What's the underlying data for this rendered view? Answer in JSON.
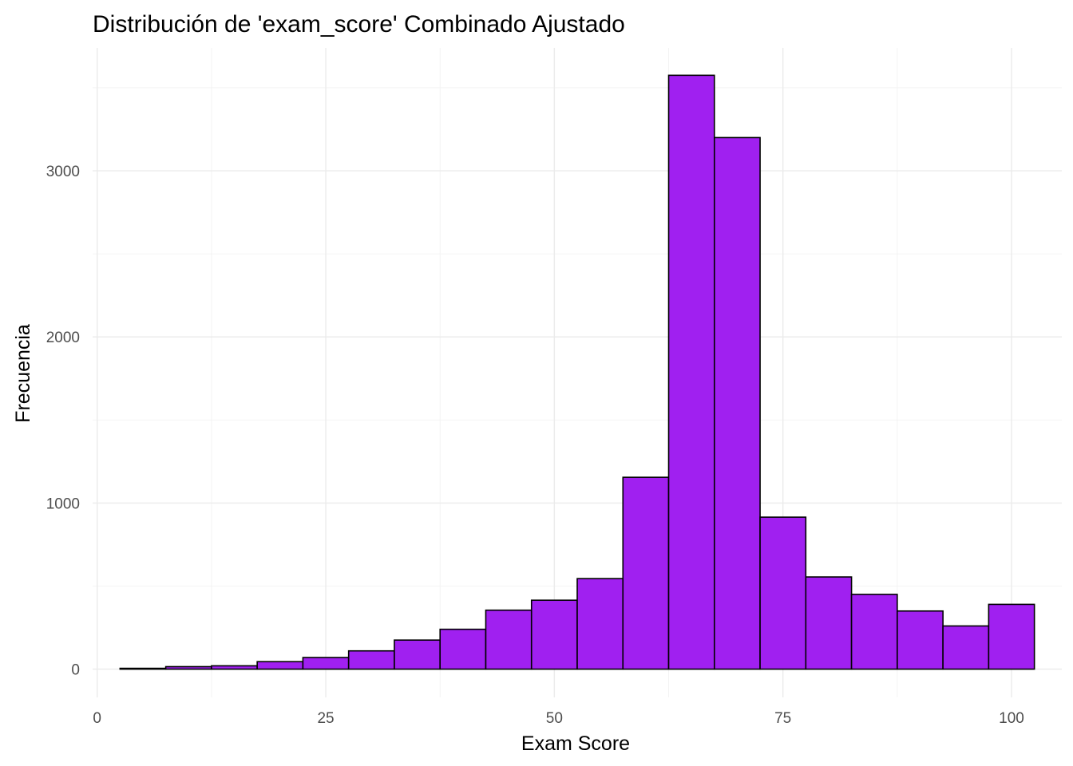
{
  "chart_data": {
    "type": "histogram",
    "title": "Distribución de 'exam_score' Combinado Ajustado",
    "xlabel": "Exam Score",
    "ylabel": "Frecuencia",
    "xlim": [
      -0.5,
      105.5
    ],
    "ylim": [
      -170,
      3740
    ],
    "x_ticks": [
      0,
      25,
      50,
      75,
      100
    ],
    "x_tick_labels": [
      "0",
      "25",
      "50",
      "75",
      "100"
    ],
    "x_minor_ticks": [
      12.5,
      37.5,
      62.5,
      87.5
    ],
    "y_ticks": [
      0,
      1000,
      2000,
      3000
    ],
    "y_tick_labels": [
      "0",
      "1000",
      "2000",
      "3000"
    ],
    "y_minor_ticks": [
      500,
      1500,
      2500,
      3500
    ],
    "grid": true,
    "legend": "none",
    "bin_width": 5,
    "bins": [
      {
        "x_start": 2.5,
        "x_end": 7.5,
        "count": 5
      },
      {
        "x_start": 7.5,
        "x_end": 12.5,
        "count": 15
      },
      {
        "x_start": 12.5,
        "x_end": 17.5,
        "count": 20
      },
      {
        "x_start": 17.5,
        "x_end": 22.5,
        "count": 45
      },
      {
        "x_start": 22.5,
        "x_end": 27.5,
        "count": 70
      },
      {
        "x_start": 27.5,
        "x_end": 32.5,
        "count": 110
      },
      {
        "x_start": 32.5,
        "x_end": 37.5,
        "count": 175
      },
      {
        "x_start": 37.5,
        "x_end": 42.5,
        "count": 240
      },
      {
        "x_start": 42.5,
        "x_end": 47.5,
        "count": 355
      },
      {
        "x_start": 47.5,
        "x_end": 52.5,
        "count": 415
      },
      {
        "x_start": 52.5,
        "x_end": 57.5,
        "count": 545
      },
      {
        "x_start": 57.5,
        "x_end": 62.5,
        "count": 1155
      },
      {
        "x_start": 62.5,
        "x_end": 67.5,
        "count": 3575
      },
      {
        "x_start": 67.5,
        "x_end": 72.5,
        "count": 3200
      },
      {
        "x_start": 72.5,
        "x_end": 77.5,
        "count": 915
      },
      {
        "x_start": 77.5,
        "x_end": 82.5,
        "count": 555
      },
      {
        "x_start": 82.5,
        "x_end": 87.5,
        "count": 450
      },
      {
        "x_start": 87.5,
        "x_end": 92.5,
        "count": 350
      },
      {
        "x_start": 92.5,
        "x_end": 97.5,
        "count": 260
      },
      {
        "x_start": 97.5,
        "x_end": 102.5,
        "count": 390
      }
    ],
    "colors": {
      "bar_fill": "#a020f0",
      "bar_outline": "#000000"
    }
  }
}
